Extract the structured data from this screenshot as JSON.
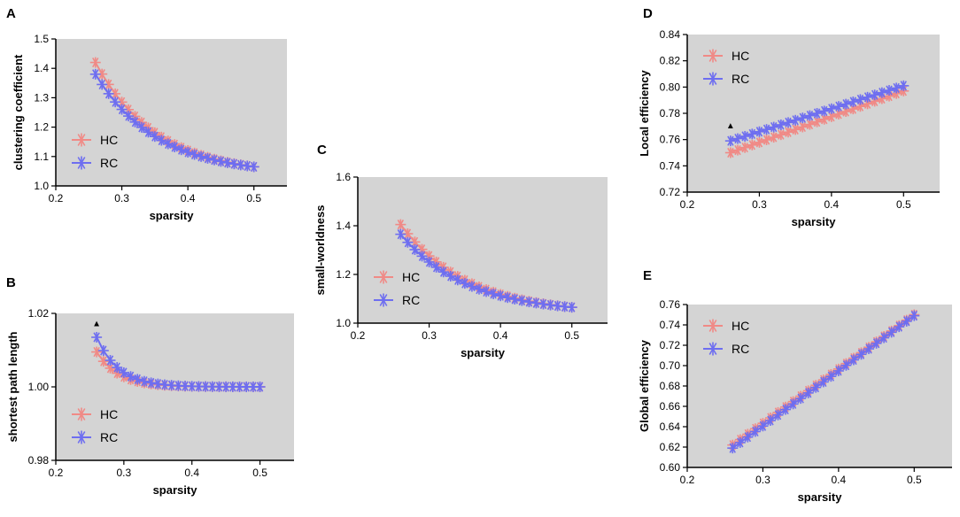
{
  "colors": {
    "HC": "#f08a86",
    "RC": "#6e6ef0",
    "plot_bg": "#d4d4d4",
    "axis": "#000000"
  },
  "chart_data": [
    {
      "panel": "A",
      "type": "line",
      "xlabel": "sparsity",
      "ylabel": "clustering coefficient",
      "xlim": [
        0.2,
        0.55
      ],
      "ylim": [
        1.0,
        1.5
      ],
      "xticks": [
        "0.2",
        "0.3",
        "0.4",
        "0.5"
      ],
      "yticks": [
        "1.0",
        "1.1",
        "1.2",
        "1.3",
        "1.4",
        "1.5"
      ],
      "legend": [
        "HC",
        "RC"
      ],
      "legend_position": "bottom-left",
      "significance_marker": null,
      "series": [
        {
          "name": "HC",
          "x_range": [
            0.26,
            0.5
          ],
          "points": 25,
          "start": 1.42,
          "end": 1.065,
          "shape": "decay"
        },
        {
          "name": "RC",
          "x_range": [
            0.26,
            0.5
          ],
          "points": 25,
          "start": 1.38,
          "end": 1.065,
          "shape": "decay"
        }
      ]
    },
    {
      "panel": "B",
      "type": "line",
      "xlabel": "sparsity",
      "ylabel": "shortest path length",
      "xlim": [
        0.2,
        0.55
      ],
      "ylim": [
        0.98,
        1.02
      ],
      "xticks": [
        "0.2",
        "0.3",
        "0.4",
        "0.5"
      ],
      "yticks": [
        "0.98",
        "1.00",
        "1.02"
      ],
      "legend": [
        "HC",
        "RC"
      ],
      "legend_position": "bottom-left",
      "significance_marker": {
        "symbol": "▲",
        "x": 0.26,
        "y": 1.0165
      },
      "series": [
        {
          "name": "HC",
          "x_range": [
            0.26,
            0.5
          ],
          "points": 25,
          "start": 1.0095,
          "end": 1.0,
          "shape": "fastdecay"
        },
        {
          "name": "RC",
          "x_range": [
            0.26,
            0.5
          ],
          "points": 25,
          "start": 1.0135,
          "end": 1.0,
          "shape": "fastdecay"
        }
      ]
    },
    {
      "panel": "C",
      "type": "line",
      "xlabel": "sparsity",
      "ylabel": "small-worldness",
      "xlim": [
        0.2,
        0.55
      ],
      "ylim": [
        1.0,
        1.6
      ],
      "xticks": [
        "0.2",
        "0.3",
        "0.4",
        "0.5"
      ],
      "yticks": [
        "1.0",
        "1.2",
        "1.4",
        "1.6"
      ],
      "legend": [
        "HC",
        "RC"
      ],
      "legend_position": "bottom-left",
      "significance_marker": null,
      "series": [
        {
          "name": "HC",
          "x_range": [
            0.26,
            0.5
          ],
          "points": 25,
          "start": 1.405,
          "end": 1.065,
          "shape": "decay"
        },
        {
          "name": "RC",
          "x_range": [
            0.26,
            0.5
          ],
          "points": 25,
          "start": 1.365,
          "end": 1.065,
          "shape": "decay"
        }
      ]
    },
    {
      "panel": "D",
      "type": "line",
      "xlabel": "sparsity",
      "ylabel": "Local efficiency",
      "xlim": [
        0.2,
        0.55
      ],
      "ylim": [
        0.72,
        0.84
      ],
      "xticks": [
        "0.2",
        "0.3",
        "0.4",
        "0.5"
      ],
      "yticks": [
        "0.72",
        "0.74",
        "0.76",
        "0.78",
        "0.80",
        "0.82",
        "0.84"
      ],
      "legend": [
        "HC",
        "RC"
      ],
      "legend_position": "top-left",
      "significance_marker": {
        "symbol": "▲",
        "x": 0.26,
        "y": 0.7685
      },
      "series": [
        {
          "name": "HC",
          "x_range": [
            0.26,
            0.5
          ],
          "points": 25,
          "start": 0.75,
          "end": 0.797,
          "shape": "linear"
        },
        {
          "name": "RC",
          "x_range": [
            0.26,
            0.5
          ],
          "points": 25,
          "start": 0.759,
          "end": 0.801,
          "shape": "linear"
        }
      ]
    },
    {
      "panel": "E",
      "type": "line",
      "xlabel": "sparsity",
      "ylabel": "Global efficiency",
      "xlim": [
        0.2,
        0.55
      ],
      "ylim": [
        0.6,
        0.76
      ],
      "xticks": [
        "0.2",
        "0.3",
        "0.4",
        "0.5"
      ],
      "yticks": [
        "0.60",
        "0.62",
        "0.64",
        "0.66",
        "0.68",
        "0.70",
        "0.72",
        "0.74",
        "0.76"
      ],
      "legend": [
        "HC",
        "RC"
      ],
      "legend_position": "top-left",
      "significance_marker": null,
      "series": [
        {
          "name": "HC",
          "x_range": [
            0.26,
            0.5
          ],
          "points": 25,
          "start": 0.622,
          "end": 0.75,
          "shape": "linear"
        },
        {
          "name": "RC",
          "x_range": [
            0.26,
            0.5
          ],
          "points": 25,
          "start": 0.619,
          "end": 0.749,
          "shape": "linear"
        }
      ]
    }
  ]
}
